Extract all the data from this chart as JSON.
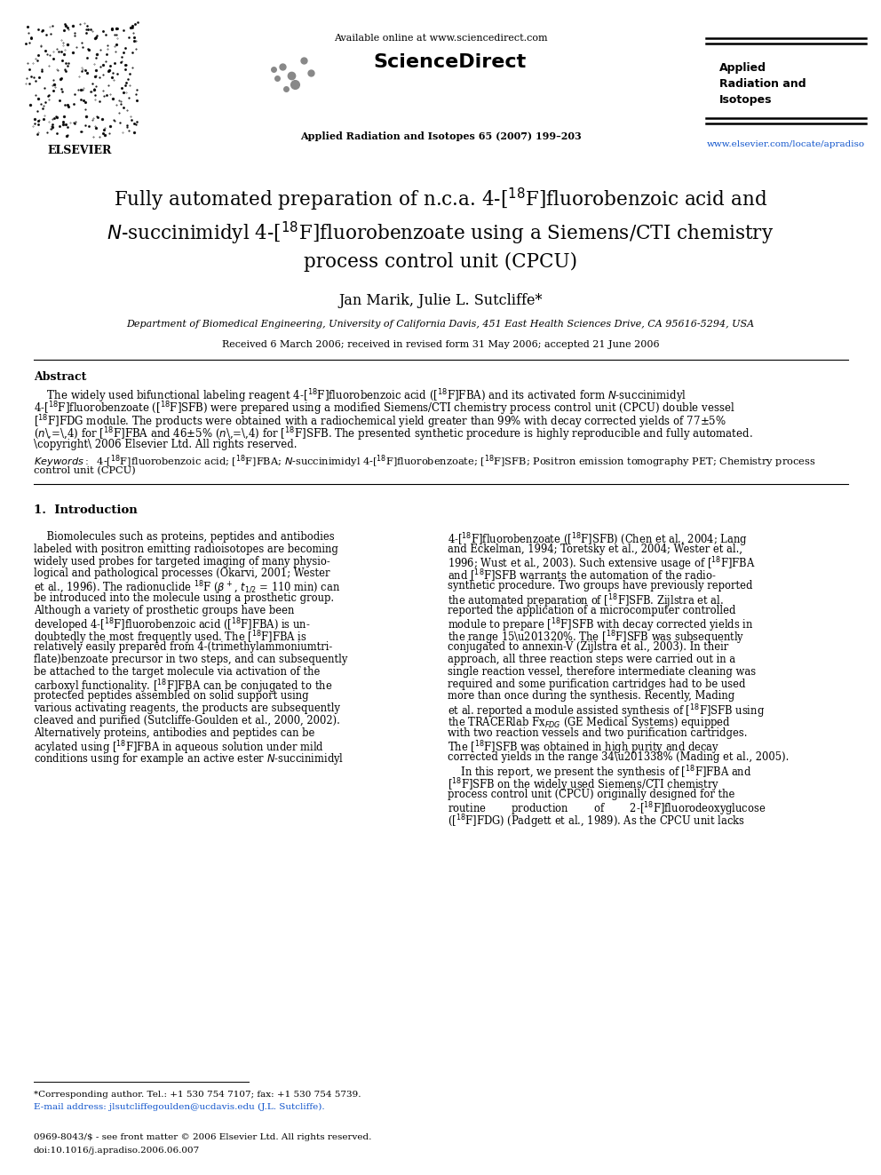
{
  "page_width": 9.92,
  "page_height": 13.23,
  "dpi": 100,
  "background": "#ffffff",
  "header": {
    "available_online": "Available online at www.sciencedirect.com",
    "sciencedirect": "ScienceDirect",
    "journal_center": "Applied Radiation and Isotopes 65 (2007) 199–203",
    "journal_right_line1": "Applied",
    "journal_right_line2": "Radiation and",
    "journal_right_line3": "Isotopes",
    "url": "www.elsevier.com/locate/apradiso",
    "elsevier": "ELSEVIER"
  },
  "authors": "Jan Marik, Julie L. Sutcliffe*",
  "affiliation": "Department of Biomedical Engineering, University of California Davis, 451 East Health Sciences Drive, CA 95616-5294, USA",
  "received": "Received 6 March 2006; received in revised form 31 May 2006; accepted 21 June 2006",
  "abstract_title": "Abstract",
  "section1_title": "1.  Introduction",
  "footnote1": "*Corresponding author. Tel.: +1 530 754 7107; fax: +1 530 754 5739.",
  "footnote2": "E-mail address: jlsutcliffegoulden@ucdavis.edu (J.L. Sutcliffe).",
  "copyright_line": "0969-8043/$ - see front matter © 2006 Elsevier Ltd. All rights reserved.",
  "doi_line": "doi:10.1016/j.apradiso.2006.06.007"
}
